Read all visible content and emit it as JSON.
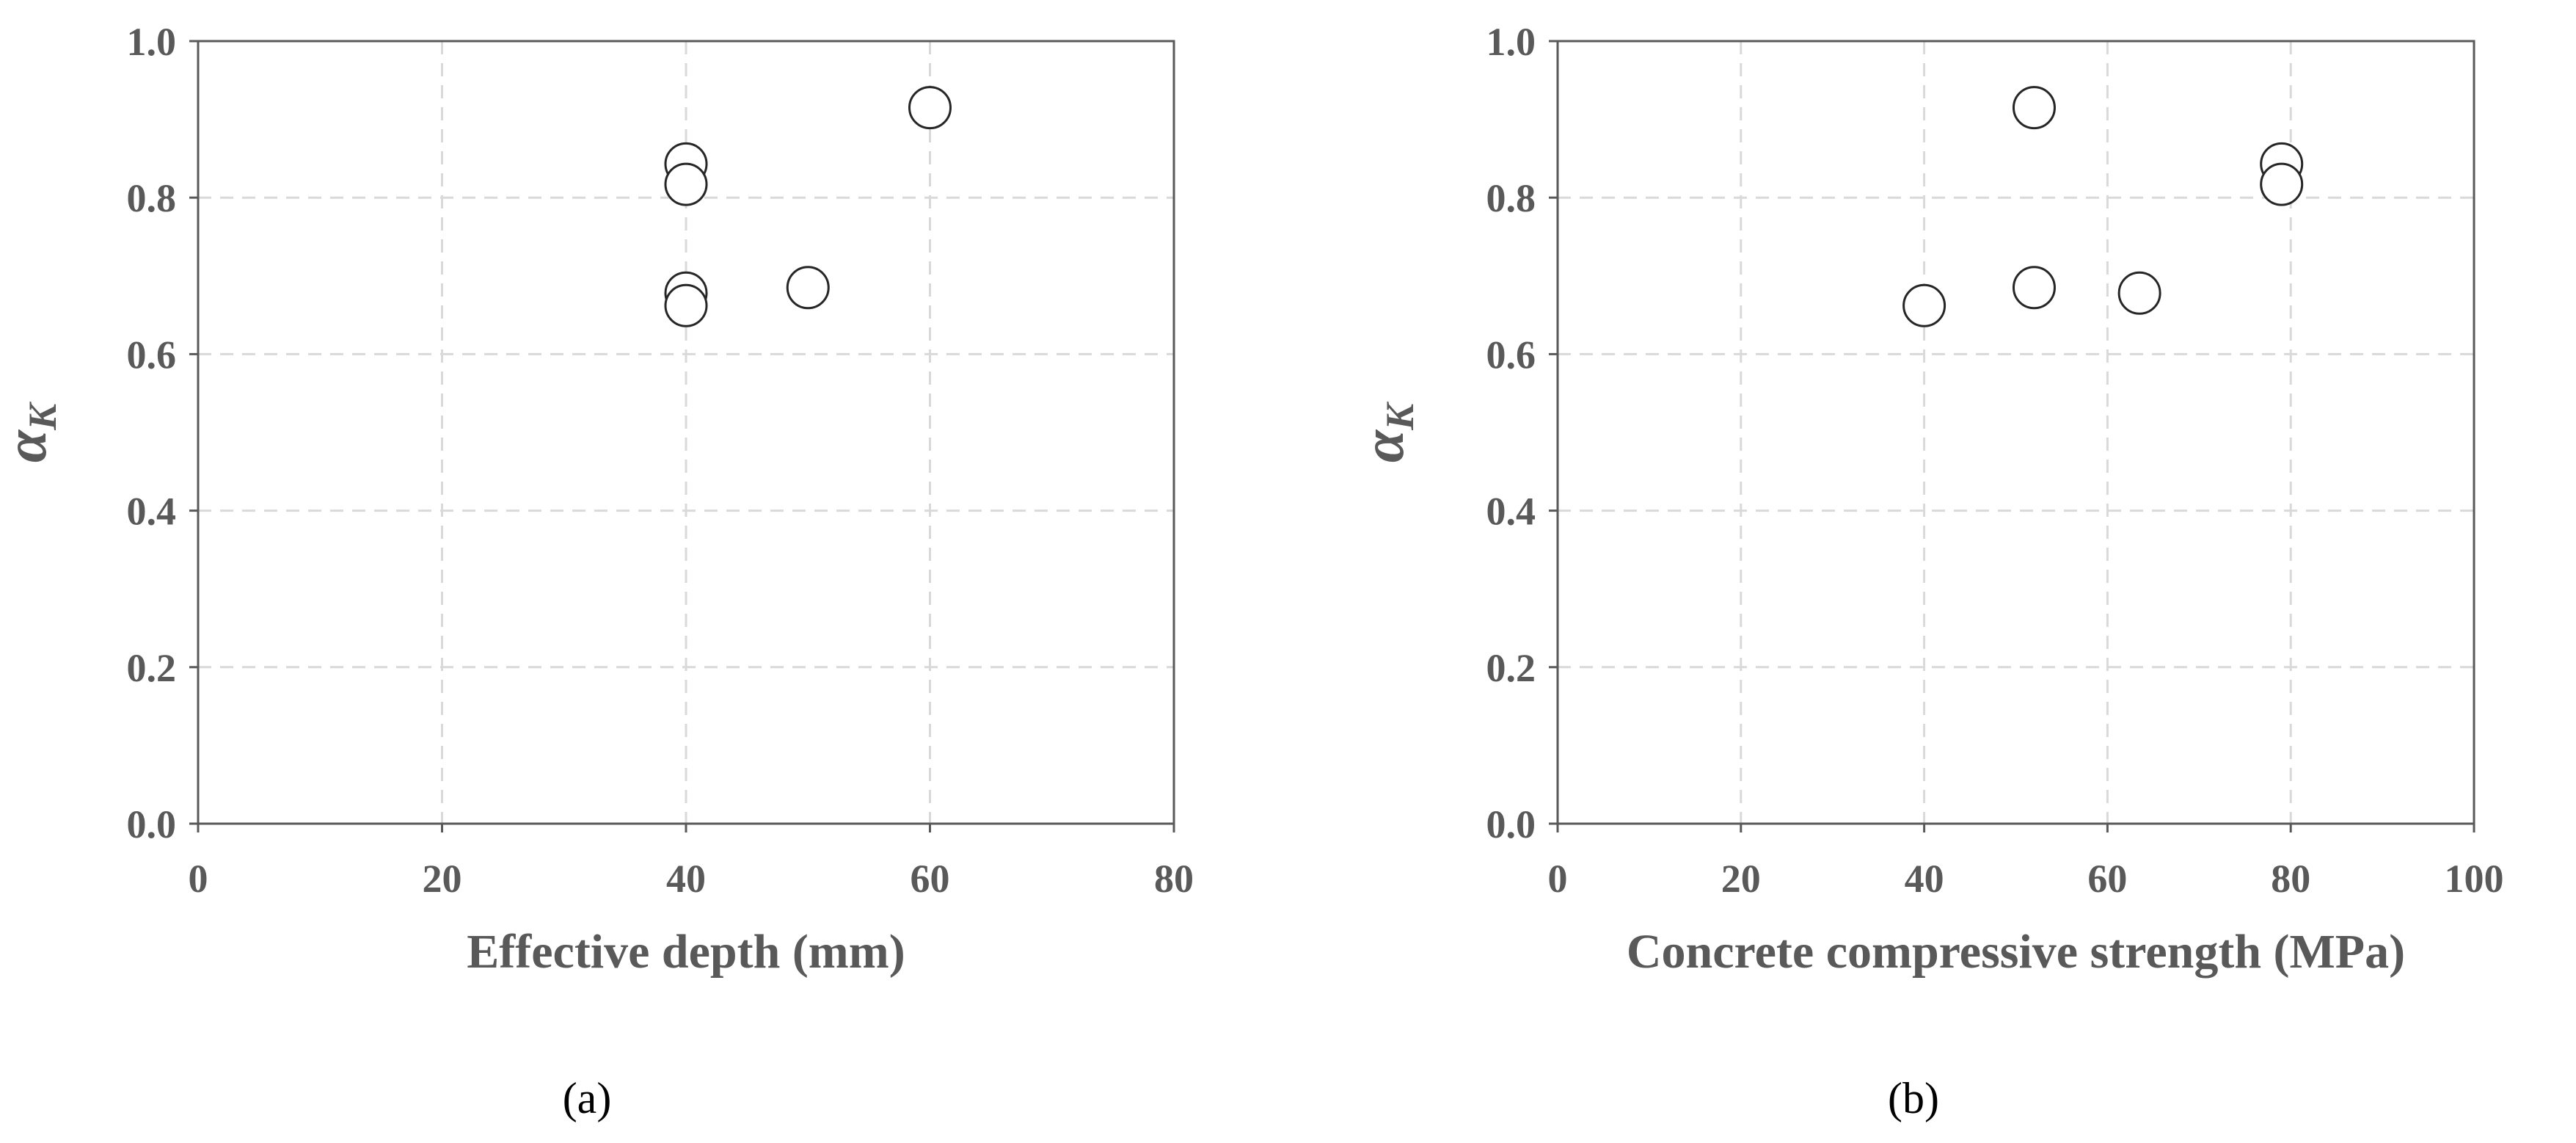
{
  "chart_data": [
    {
      "type": "scatter",
      "panel_label": "(a)",
      "xlabel": "Effective depth (mm)",
      "ylabel": "α",
      "ylabel_sub": "K",
      "xlim": [
        0,
        80
      ],
      "ylim": [
        0.0,
        1.0
      ],
      "x_ticks": [
        "0",
        "20",
        "40",
        "60",
        "80"
      ],
      "y_ticks": [
        "0.0",
        "0.2",
        "0.4",
        "0.6",
        "0.8",
        "1.0"
      ],
      "grid": true,
      "marker": "open-circle",
      "series": [
        {
          "name": "α_K",
          "points": [
            {
              "x": 40,
              "y": 0.843
            },
            {
              "x": 40,
              "y": 0.817
            },
            {
              "x": 40,
              "y": 0.678
            },
            {
              "x": 40,
              "y": 0.662
            },
            {
              "x": 50,
              "y": 0.685
            },
            {
              "x": 60,
              "y": 0.915
            }
          ]
        }
      ]
    },
    {
      "type": "scatter",
      "panel_label": "(b)",
      "xlabel": "Concrete compressive strength (MPa)",
      "ylabel": "α",
      "ylabel_sub": "K",
      "xlim": [
        0,
        100
      ],
      "ylim": [
        0.0,
        1.0
      ],
      "x_ticks": [
        "0",
        "20",
        "40",
        "60",
        "80",
        "100"
      ],
      "y_ticks": [
        "0.0",
        "0.2",
        "0.4",
        "0.6",
        "0.8",
        "1.0"
      ],
      "grid": true,
      "marker": "open-circle",
      "series": [
        {
          "name": "α_K",
          "points": [
            {
              "x": 40,
              "y": 0.662
            },
            {
              "x": 52,
              "y": 0.915
            },
            {
              "x": 52,
              "y": 0.685
            },
            {
              "x": 63.5,
              "y": 0.678
            },
            {
              "x": 79,
              "y": 0.843
            },
            {
              "x": 79,
              "y": 0.817
            }
          ]
        }
      ]
    }
  ],
  "colors": {
    "frame": "#595959",
    "grid": "#d9d9d9",
    "text": "#595959",
    "marker_edge": "#262626",
    "marker_fill": "#ffffff"
  }
}
